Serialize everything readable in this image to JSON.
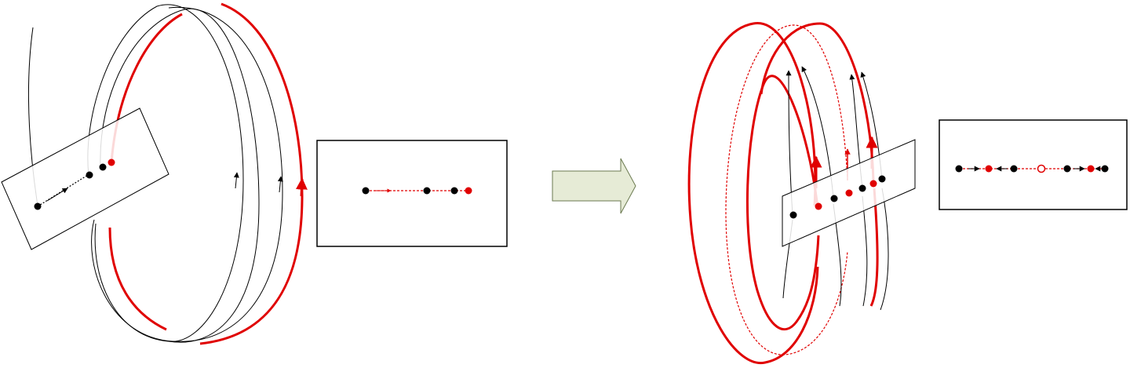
{
  "colors": {
    "black": "#000000",
    "red": "#e00000",
    "transition_arrow_fill": "#e6ebd6",
    "transition_arrow_stroke": "#6b7a50",
    "background": "#ffffff"
  },
  "left_figure": {
    "description_hidden": "",
    "section_points": [
      {
        "color": "black"
      },
      {
        "color": "black"
      },
      {
        "color": "black"
      },
      {
        "color": "red"
      }
    ]
  },
  "left_inset": {
    "points": [
      {
        "color": "black",
        "filled": true
      },
      {
        "color": "black",
        "filled": true
      },
      {
        "color": "black",
        "filled": true
      },
      {
        "color": "red",
        "filled": true
      }
    ],
    "arrows": [
      "right"
    ]
  },
  "transition": {
    "icon": "right-arrow-icon"
  },
  "right_figure": {
    "section_points": [
      {
        "color": "black"
      },
      {
        "color": "red"
      },
      {
        "color": "black"
      },
      {
        "color": "red"
      },
      {
        "color": "black"
      },
      {
        "color": "red"
      },
      {
        "color": "black"
      }
    ]
  },
  "right_inset": {
    "points": [
      {
        "color": "black",
        "filled": true
      },
      {
        "color": "red",
        "filled": true
      },
      {
        "color": "black",
        "filled": true
      },
      {
        "color": "red",
        "filled": false
      },
      {
        "color": "black",
        "filled": true
      },
      {
        "color": "red",
        "filled": true
      },
      {
        "color": "black",
        "filled": true
      }
    ],
    "arrows": [
      "right",
      "left",
      "right",
      "left"
    ]
  }
}
